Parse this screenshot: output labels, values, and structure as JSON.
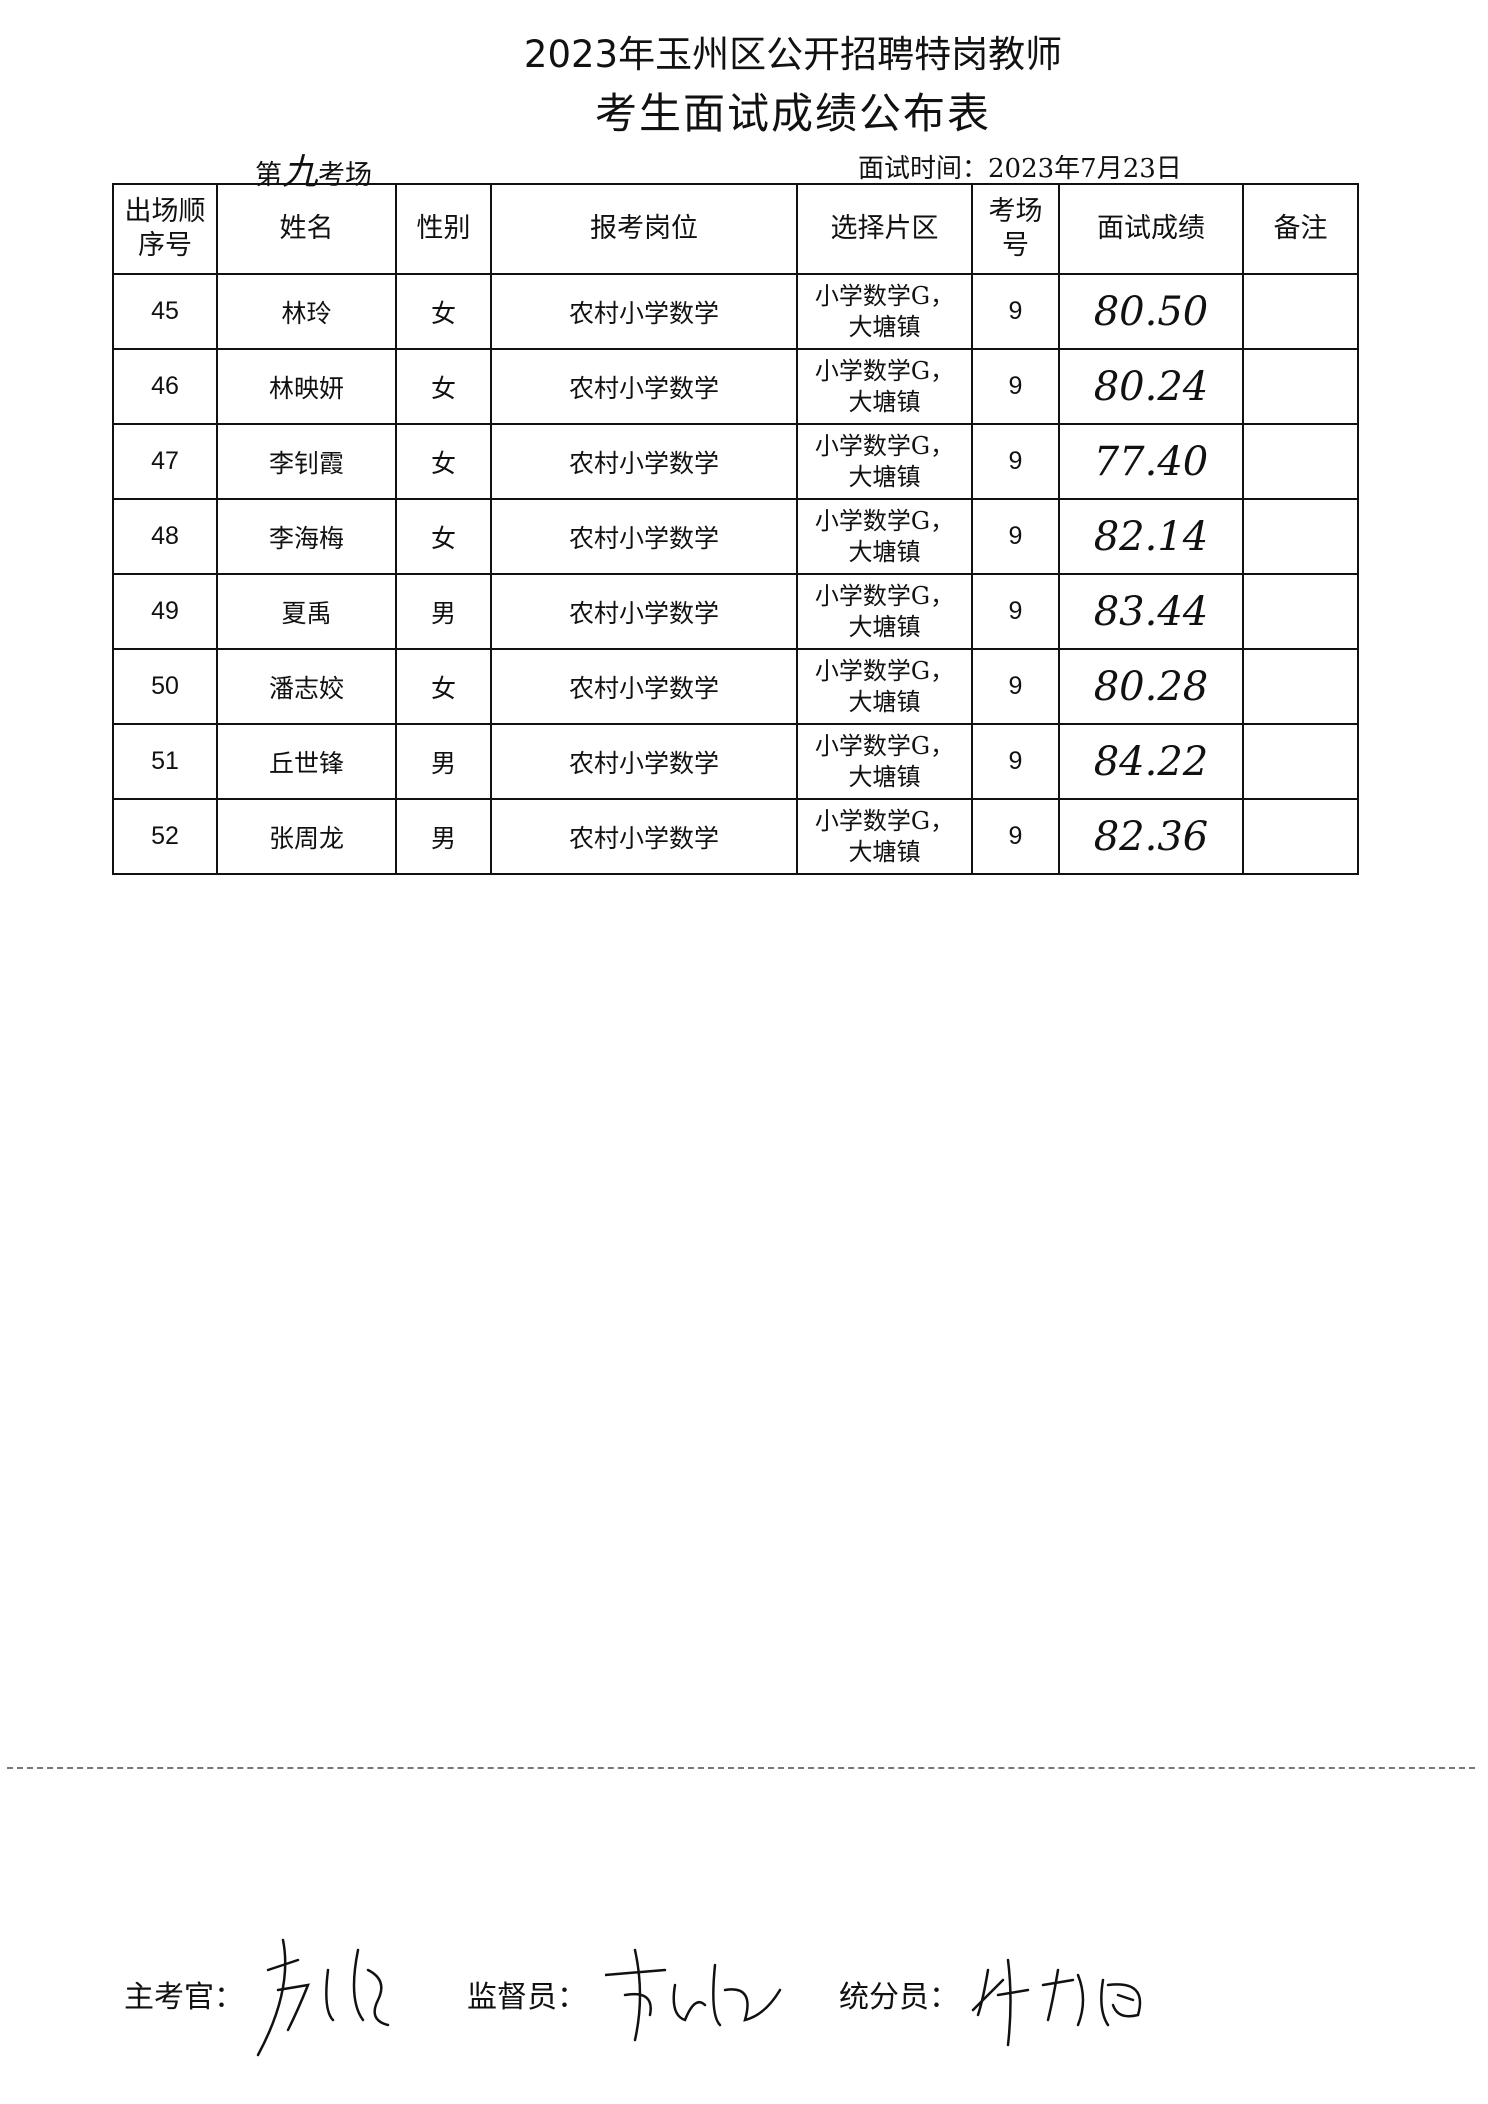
{
  "title_line1": "2023年玉州区公开招聘特岗教师",
  "title_line2": "考生面试成绩公布表",
  "exam_room": {
    "prefix": "第",
    "number_handwritten": "九",
    "suffix": "考场"
  },
  "interview_date": "面试时间：2023年7月23日",
  "table": {
    "headers": [
      "出场顺序号",
      "姓名",
      "性别",
      "报考岗位",
      "选择片区",
      "考场号",
      "面试成绩",
      "备注"
    ],
    "rows": [
      {
        "seq": "45",
        "name": "林玲",
        "gender": "女",
        "position": "农村小学数学",
        "area": "小学数学G，大塘镇",
        "room": "9",
        "score": "80.50",
        "note": ""
      },
      {
        "seq": "46",
        "name": "林映妍",
        "gender": "女",
        "position": "农村小学数学",
        "area": "小学数学G，大塘镇",
        "room": "9",
        "score": "80.24",
        "note": ""
      },
      {
        "seq": "47",
        "name": "李钊霞",
        "gender": "女",
        "position": "农村小学数学",
        "area": "小学数学G，大塘镇",
        "room": "9",
        "score": "77.40",
        "note": ""
      },
      {
        "seq": "48",
        "name": "李海梅",
        "gender": "女",
        "position": "农村小学数学",
        "area": "小学数学G，大塘镇",
        "room": "9",
        "score": "82.14",
        "note": ""
      },
      {
        "seq": "49",
        "name": "夏禹",
        "gender": "男",
        "position": "农村小学数学",
        "area": "小学数学G，大塘镇",
        "room": "9",
        "score": "83.44",
        "note": ""
      },
      {
        "seq": "50",
        "name": "潘志姣",
        "gender": "女",
        "position": "农村小学数学",
        "area": "小学数学G，大塘镇",
        "room": "9",
        "score": "80.28",
        "note": ""
      },
      {
        "seq": "51",
        "name": "丘世锋",
        "gender": "男",
        "position": "农村小学数学",
        "area": "小学数学G，大塘镇",
        "room": "9",
        "score": "84.22",
        "note": ""
      },
      {
        "seq": "52",
        "name": "张周龙",
        "gender": "男",
        "position": "农村小学数学",
        "area": "小学数学G，大塘镇",
        "room": "9",
        "score": "82.36",
        "note": ""
      }
    ]
  },
  "signatures": {
    "chief_examiner_label": "主考官：",
    "supervisor_label": "监督员：",
    "scorer_label": "统分员："
  }
}
